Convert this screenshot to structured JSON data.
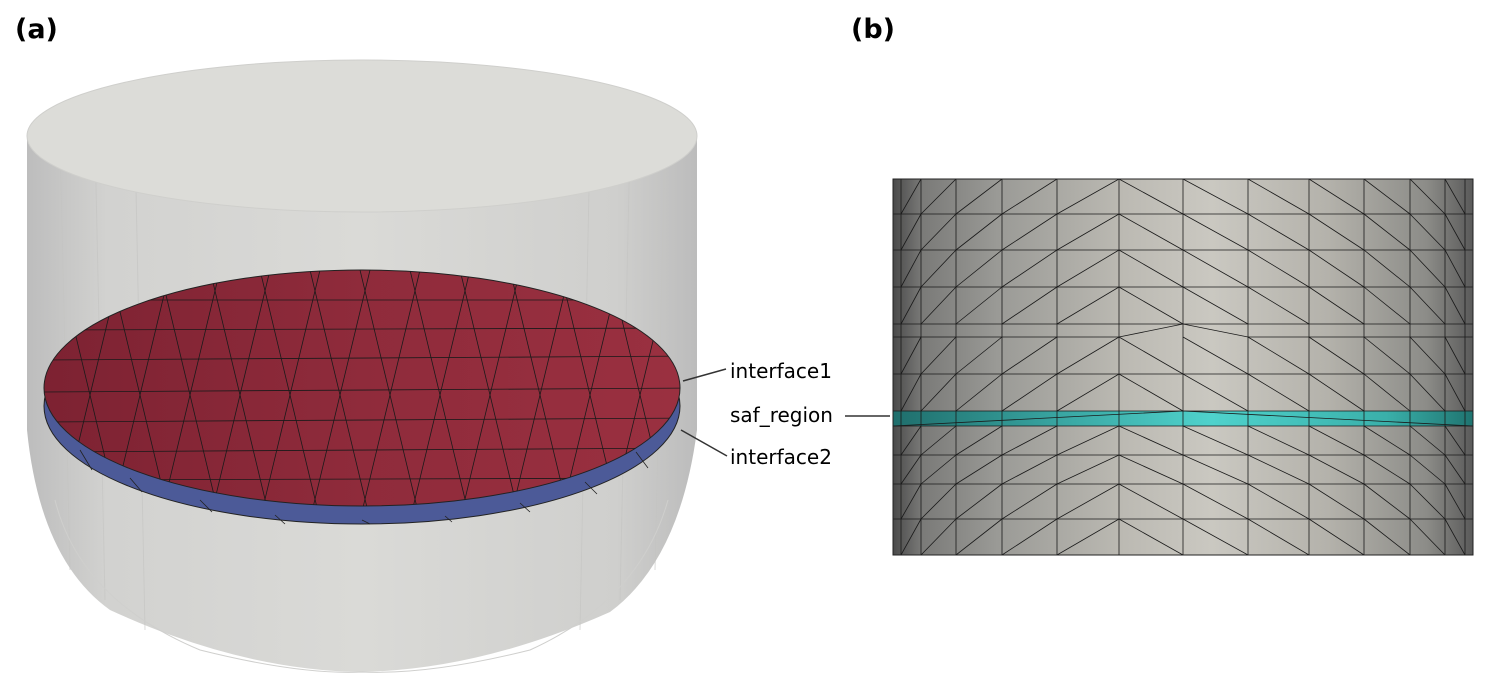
{
  "panels": [
    {
      "label": "(a)"
    },
    {
      "label": "(b)"
    }
  ],
  "annotations": {
    "interface1": "interface1",
    "interface2": "interface2",
    "saf_region": "saf_region"
  },
  "colors": {
    "cylinder_light": "#dcdcd8",
    "cylinder_side": "#c8c8c8",
    "interface1_red": "#8e2a3a",
    "interface2_blue": "#4c5a98",
    "saf_cyan": "#45c6c0",
    "mesh_line": "#111111"
  }
}
